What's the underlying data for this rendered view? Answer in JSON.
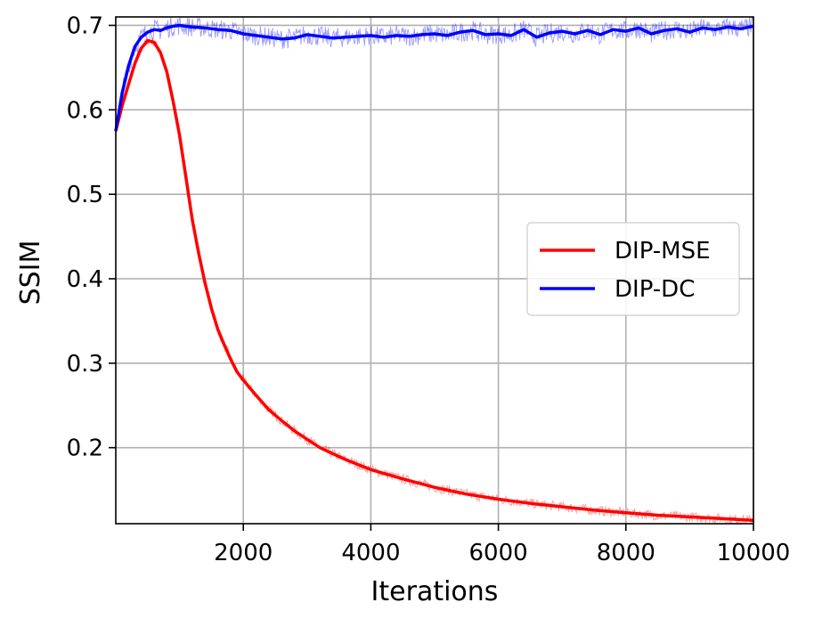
{
  "chart_data": {
    "type": "line",
    "title": "",
    "xlabel": "Iterations",
    "ylabel": "SSIM",
    "xlim": [
      0,
      10000
    ],
    "ylim": [
      0.11,
      0.71
    ],
    "grid": true,
    "legend_position": "center-right",
    "x_ticks": [
      2000,
      4000,
      6000,
      8000,
      10000
    ],
    "x_tick_labels": [
      "2000",
      "4000",
      "6000",
      "8000",
      "10000"
    ],
    "y_ticks": [
      0.2,
      0.3,
      0.4,
      0.5,
      0.6,
      0.7
    ],
    "y_tick_labels": [
      "0.2",
      "0.3",
      "0.4",
      "0.5",
      "0.6",
      "0.7"
    ],
    "series": [
      {
        "name": "DIP-MSE",
        "color": "#ff0000",
        "points": [
          [
            0,
            0.575
          ],
          [
            100,
            0.605
          ],
          [
            200,
            0.63
          ],
          [
            300,
            0.655
          ],
          [
            400,
            0.673
          ],
          [
            500,
            0.682
          ],
          [
            600,
            0.68
          ],
          [
            700,
            0.668
          ],
          [
            800,
            0.645
          ],
          [
            900,
            0.61
          ],
          [
            1000,
            0.57
          ],
          [
            1100,
            0.52
          ],
          [
            1200,
            0.47
          ],
          [
            1300,
            0.43
          ],
          [
            1400,
            0.395
          ],
          [
            1500,
            0.365
          ],
          [
            1600,
            0.34
          ],
          [
            1700,
            0.322
          ],
          [
            1800,
            0.305
          ],
          [
            1900,
            0.29
          ],
          [
            2000,
            0.28
          ],
          [
            2200,
            0.262
          ],
          [
            2400,
            0.245
          ],
          [
            2600,
            0.232
          ],
          [
            2800,
            0.22
          ],
          [
            3000,
            0.21
          ],
          [
            3200,
            0.2
          ],
          [
            3400,
            0.193
          ],
          [
            3600,
            0.186
          ],
          [
            3800,
            0.18
          ],
          [
            4000,
            0.174
          ],
          [
            4500,
            0.163
          ],
          [
            5000,
            0.153
          ],
          [
            5500,
            0.145
          ],
          [
            6000,
            0.139
          ],
          [
            6500,
            0.134
          ],
          [
            7000,
            0.13
          ],
          [
            7500,
            0.126
          ],
          [
            8000,
            0.123
          ],
          [
            8500,
            0.12
          ],
          [
            9000,
            0.118
          ],
          [
            9500,
            0.116
          ],
          [
            10000,
            0.114
          ]
        ]
      },
      {
        "name": "DIP-DC",
        "color": "#0000ff",
        "points": [
          [
            0,
            0.575
          ],
          [
            100,
            0.62
          ],
          [
            200,
            0.652
          ],
          [
            300,
            0.675
          ],
          [
            400,
            0.686
          ],
          [
            500,
            0.692
          ],
          [
            600,
            0.695
          ],
          [
            700,
            0.694
          ],
          [
            800,
            0.697
          ],
          [
            900,
            0.699
          ],
          [
            1000,
            0.7
          ],
          [
            1200,
            0.698
          ],
          [
            1400,
            0.697
          ],
          [
            1600,
            0.695
          ],
          [
            1800,
            0.694
          ],
          [
            2000,
            0.69
          ],
          [
            2200,
            0.688
          ],
          [
            2400,
            0.686
          ],
          [
            2600,
            0.684
          ],
          [
            2800,
            0.685
          ],
          [
            3000,
            0.689
          ],
          [
            3200,
            0.687
          ],
          [
            3400,
            0.685
          ],
          [
            3600,
            0.686
          ],
          [
            3800,
            0.687
          ],
          [
            4000,
            0.688
          ],
          [
            4200,
            0.686
          ],
          [
            4400,
            0.688
          ],
          [
            4600,
            0.687
          ],
          [
            4800,
            0.689
          ],
          [
            5000,
            0.69
          ],
          [
            5200,
            0.688
          ],
          [
            5400,
            0.692
          ],
          [
            5600,
            0.694
          ],
          [
            5800,
            0.689
          ],
          [
            6000,
            0.69
          ],
          [
            6200,
            0.688
          ],
          [
            6400,
            0.695
          ],
          [
            6600,
            0.686
          ],
          [
            6800,
            0.691
          ],
          [
            7000,
            0.693
          ],
          [
            7200,
            0.69
          ],
          [
            7400,
            0.694
          ],
          [
            7600,
            0.689
          ],
          [
            7800,
            0.695
          ],
          [
            8000,
            0.693
          ],
          [
            8200,
            0.697
          ],
          [
            8400,
            0.69
          ],
          [
            8600,
            0.694
          ],
          [
            8800,
            0.696
          ],
          [
            9000,
            0.692
          ],
          [
            9200,
            0.697
          ],
          [
            9400,
            0.695
          ],
          [
            9600,
            0.698
          ],
          [
            9800,
            0.696
          ],
          [
            10000,
            0.699
          ]
        ]
      }
    ]
  }
}
